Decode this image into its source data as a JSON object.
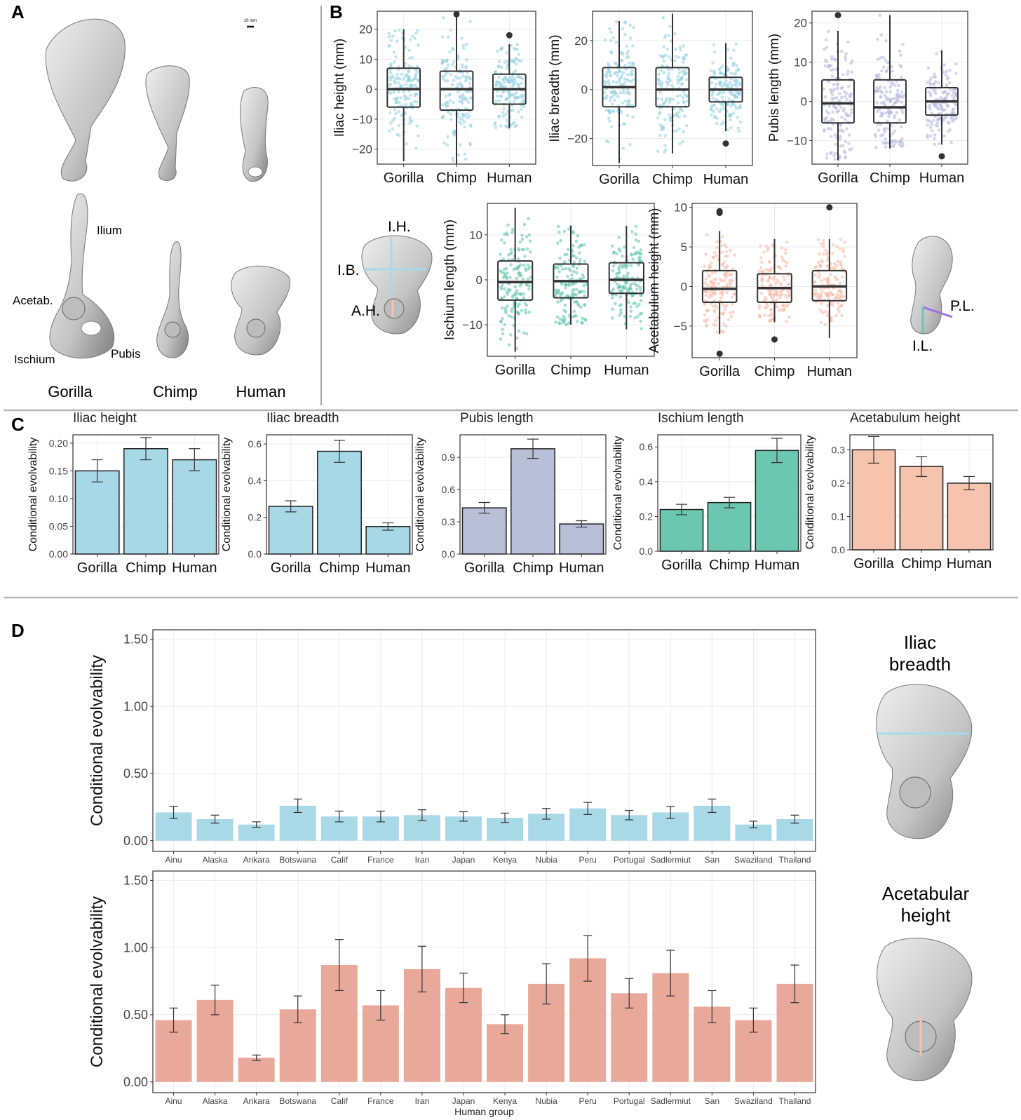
{
  "panel_letters": [
    "A",
    "B",
    "C",
    "D"
  ],
  "panel_a": {
    "species": [
      "Gorilla",
      "Chimp",
      "Human"
    ],
    "scale_label": "10 mm",
    "bone_labels": [
      "Ilium",
      "Acetab.",
      "Ischium",
      "Pubis"
    ]
  },
  "panel_b": {
    "measure_labels_left": [
      "I.H.",
      "I.B.",
      "A.H."
    ],
    "measure_labels_right": [
      "P.L.",
      "I.L."
    ]
  },
  "panel_d": {
    "figure_titles": [
      "Iliac\nbreadth",
      "Acetabular\nheight"
    ]
  },
  "colors": {
    "blue": "#a6d8e6",
    "blue_point": "#8fd0e0",
    "lavender": "#b9bfd6",
    "lavender_point": "#b0b5dc",
    "teal": "#6cc7b0",
    "teal_point": "#5cc2aa",
    "salmon": "#f5c3ae",
    "salmon_point": "#f7b8a4",
    "blue_d": "#a9d8e6",
    "salmon_d": "#e8a89a",
    "bone": "#c9c9c9",
    "bone_dark": "#8d8d8d"
  },
  "chart_data": [
    {
      "id": "B1",
      "type": "box",
      "ylabel": "Iliac height (mm)",
      "categories": [
        "Gorilla",
        "Chimp",
        "Human"
      ],
      "ylim": [
        -25,
        26
      ],
      "yticks": [
        -20,
        -10,
        0,
        10,
        20
      ],
      "grid": true,
      "color": "blue",
      "boxes": [
        {
          "q1": -6,
          "median": 0,
          "q3": 7,
          "lo": -24,
          "hi": 20,
          "outliers": []
        },
        {
          "q1": -7,
          "median": 0,
          "q3": 6,
          "lo": -25,
          "hi": 24,
          "outliers": [
            25
          ]
        },
        {
          "q1": -5,
          "median": 0,
          "q3": 5,
          "lo": -13,
          "hi": 15,
          "outliers": [
            18
          ]
        }
      ]
    },
    {
      "id": "B2",
      "type": "box",
      "ylabel": "Iliac breadth (mm)",
      "categories": [
        "Gorilla",
        "Chimp",
        "Human"
      ],
      "ylim": [
        -31,
        32
      ],
      "yticks": [
        -20,
        0,
        20
      ],
      "grid": true,
      "color": "blue",
      "boxes": [
        {
          "q1": -7,
          "median": 1,
          "q3": 9,
          "lo": -30,
          "hi": 28,
          "outliers": []
        },
        {
          "q1": -7,
          "median": 0,
          "q3": 9,
          "lo": -26,
          "hi": 31,
          "outliers": []
        },
        {
          "q1": -5,
          "median": 0,
          "q3": 5,
          "lo": -17,
          "hi": 19,
          "outliers": [
            -22
          ]
        }
      ]
    },
    {
      "id": "B3",
      "type": "box",
      "ylabel": "Pubis length (mm)",
      "categories": [
        "Gorilla",
        "Chimp",
        "Human"
      ],
      "ylim": [
        -16,
        23
      ],
      "yticks": [
        -10,
        0,
        10,
        20
      ],
      "grid": true,
      "color": "lavender",
      "boxes": [
        {
          "q1": -5.5,
          "median": -0.5,
          "q3": 5.5,
          "lo": -15,
          "hi": 18,
          "outliers": [
            22
          ]
        },
        {
          "q1": -5.5,
          "median": -1.5,
          "q3": 5.5,
          "lo": -12,
          "hi": 22,
          "outliers": []
        },
        {
          "q1": -3.5,
          "median": 0,
          "q3": 3.5,
          "lo": -11,
          "hi": 13,
          "outliers": [
            -14
          ]
        }
      ]
    },
    {
      "id": "B4",
      "type": "box",
      "ylabel": "Ischium length (mm)",
      "categories": [
        "Gorilla",
        "Chimp",
        "Human"
      ],
      "ylim": [
        -17,
        17
      ],
      "yticks": [
        -10,
        0,
        10
      ],
      "grid": true,
      "color": "teal",
      "boxes": [
        {
          "q1": -4.5,
          "median": -0.5,
          "q3": 4.2,
          "lo": -16,
          "hi": 16,
          "outliers": []
        },
        {
          "q1": -4,
          "median": -0.3,
          "q3": 3.5,
          "lo": -10,
          "hi": 12,
          "outliers": []
        },
        {
          "q1": -3,
          "median": 0,
          "q3": 3.8,
          "lo": -11,
          "hi": 12,
          "outliers": []
        }
      ]
    },
    {
      "id": "B5",
      "type": "box",
      "ylabel": "Acetabulum height (mm)",
      "categories": [
        "Gorilla",
        "Chimp",
        "Human"
      ],
      "ylim": [
        -9,
        10.5
      ],
      "yticks": [
        -5,
        0,
        5,
        10
      ],
      "grid": true,
      "color": "salmon",
      "boxes": [
        {
          "q1": -2,
          "median": -0.3,
          "q3": 2,
          "lo": -6,
          "hi": 7,
          "outliers": [
            9.3,
            9.5,
            -8.5
          ]
        },
        {
          "q1": -2,
          "median": -0.2,
          "q3": 1.6,
          "lo": -4.5,
          "hi": 6,
          "outliers": [
            -6.7
          ]
        },
        {
          "q1": -1.8,
          "median": 0,
          "q3": 2,
          "lo": -6.5,
          "hi": 6,
          "outliers": [
            10
          ]
        }
      ]
    },
    {
      "id": "C1",
      "type": "bar",
      "title": "Iliac height",
      "ylabel": "Conditional evolvability",
      "categories": [
        "Gorilla",
        "Chimp",
        "Human"
      ],
      "values": [
        0.15,
        0.19,
        0.17
      ],
      "errors": [
        0.02,
        0.02,
        0.02
      ],
      "ylim": [
        0,
        0.215
      ],
      "yticks": [
        "0.00",
        "0.05",
        "0.10",
        "0.15",
        "0.20"
      ],
      "color": "blue"
    },
    {
      "id": "C2",
      "type": "bar",
      "title": "Iliac breadth",
      "ylabel": "Conditional evolvability",
      "categories": [
        "Gorilla",
        "Chimp",
        "Human"
      ],
      "values": [
        0.26,
        0.56,
        0.15
      ],
      "errors": [
        0.03,
        0.06,
        0.02
      ],
      "ylim": [
        0,
        0.65
      ],
      "yticks": [
        "0.0",
        "0.2",
        "0.4",
        "0.6"
      ],
      "color": "blue"
    },
    {
      "id": "C3",
      "type": "bar",
      "title": "Pubis length",
      "ylabel": "Conditional evolvability",
      "categories": [
        "Gorilla",
        "Chimp",
        "Human"
      ],
      "values": [
        0.43,
        0.98,
        0.28
      ],
      "errors": [
        0.05,
        0.09,
        0.03
      ],
      "ylim": [
        0,
        1.11
      ],
      "yticks": [
        "0.0",
        "0.3",
        "0.6",
        "0.9"
      ],
      "color": "lavender"
    },
    {
      "id": "C4",
      "type": "bar",
      "title": "Ischium length",
      "ylabel": "Conditional evolvability",
      "categories": [
        "Gorilla",
        "Chimp",
        "Human"
      ],
      "values": [
        0.24,
        0.28,
        0.58
      ],
      "errors": [
        0.03,
        0.03,
        0.07
      ],
      "ylim": [
        0,
        0.67
      ],
      "yticks": [
        "0.0",
        "0.2",
        "0.4",
        "0.6"
      ],
      "color": "teal"
    },
    {
      "id": "C5",
      "type": "bar",
      "title": "Acetabulum height",
      "ylabel": "Conditional evolvability",
      "categories": [
        "Gorilla",
        "Chimp",
        "Human"
      ],
      "values": [
        0.3,
        0.25,
        0.2
      ],
      "errors": [
        0.04,
        0.03,
        0.02
      ],
      "ylim": [
        0,
        0.345
      ],
      "yticks": [
        "0.0",
        "0.1",
        "0.2",
        "0.3"
      ],
      "color": "salmon"
    },
    {
      "id": "D1",
      "type": "bar",
      "ylabel": "Conditional evolvability",
      "categories": [
        "Ainu",
        "Alaska",
        "Arikara",
        "Botswana",
        "Calif",
        "France",
        "Iran",
        "Japan",
        "Kenya",
        "Nubia",
        "Peru",
        "Portugal",
        "Sadlermiut",
        "San",
        "Swaziland",
        "Thailand"
      ],
      "values": [
        0.21,
        0.16,
        0.12,
        0.26,
        0.18,
        0.18,
        0.19,
        0.18,
        0.17,
        0.2,
        0.24,
        0.19,
        0.21,
        0.26,
        0.12,
        0.16
      ],
      "errors": [
        0.045,
        0.03,
        0.02,
        0.05,
        0.04,
        0.04,
        0.04,
        0.035,
        0.035,
        0.04,
        0.045,
        0.035,
        0.045,
        0.05,
        0.025,
        0.03
      ],
      "ylim": [
        -0.08,
        1.57
      ],
      "yticks": [
        "0.00",
        "0.50",
        "1.00",
        "1.50"
      ],
      "color": "blue_d"
    },
    {
      "id": "D2",
      "type": "bar",
      "ylabel": "Conditional evolvability",
      "xlabel": "Human group",
      "categories": [
        "Ainu",
        "Alaska",
        "Arikara",
        "Botswana",
        "Calif",
        "France",
        "Iran",
        "Japan",
        "Kenya",
        "Nubia",
        "Peru",
        "Portugal",
        "Sadlermiut",
        "San",
        "Swaziland",
        "Thailand"
      ],
      "values": [
        0.46,
        0.61,
        0.18,
        0.54,
        0.87,
        0.57,
        0.84,
        0.7,
        0.43,
        0.73,
        0.92,
        0.66,
        0.81,
        0.56,
        0.46,
        0.73
      ],
      "errors": [
        0.09,
        0.11,
        0.02,
        0.1,
        0.19,
        0.11,
        0.17,
        0.11,
        0.07,
        0.15,
        0.17,
        0.11,
        0.17,
        0.12,
        0.09,
        0.14
      ],
      "ylim": [
        -0.08,
        1.57
      ],
      "yticks": [
        "0.00",
        "0.50",
        "1.00",
        "1.50"
      ],
      "color": "salmon_d"
    }
  ]
}
